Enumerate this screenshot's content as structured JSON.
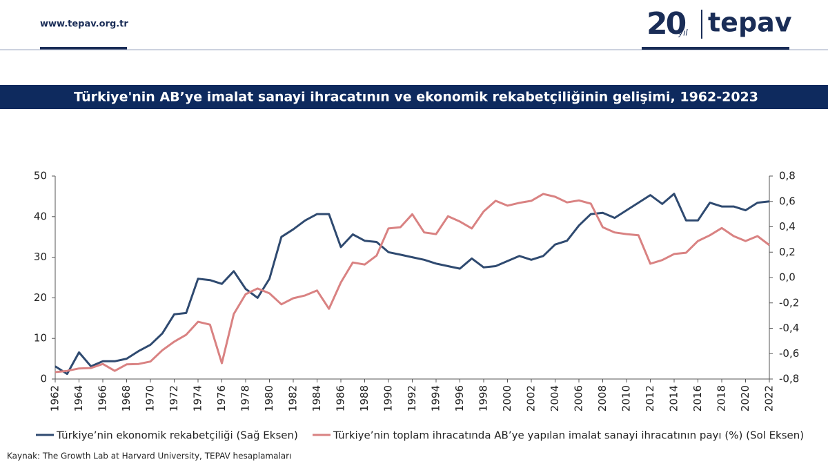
{
  "header": {
    "url": "www.tepav.org.tr",
    "logo_number": "20",
    "logo_suffix": "yıl",
    "logo_name": "tepav"
  },
  "chart_data": {
    "type": "line",
    "title": "Türkiye'nin AB’ye imalat sanayi ihracatının ve ekonomik rekabetçiliğinin gelişimi, 1962-2023",
    "source": "Kaynak: The Growth Lab at Harvard University, TEPAV hesaplamaları",
    "x": [
      1962,
      1963,
      1964,
      1965,
      1966,
      1967,
      1968,
      1969,
      1970,
      1971,
      1972,
      1973,
      1974,
      1975,
      1976,
      1977,
      1978,
      1979,
      1980,
      1981,
      1982,
      1983,
      1984,
      1985,
      1986,
      1987,
      1988,
      1989,
      1990,
      1991,
      1992,
      1993,
      1994,
      1995,
      1996,
      1997,
      1998,
      1999,
      2000,
      2001,
      2002,
      2003,
      2004,
      2005,
      2006,
      2007,
      2008,
      2009,
      2010,
      2011,
      2012,
      2013,
      2014,
      2015,
      2016,
      2017,
      2018,
      2019,
      2020,
      2021,
      2022
    ],
    "xlim": [
      1962,
      2022
    ],
    "xticks": [
      1962,
      1964,
      1966,
      1968,
      1970,
      1972,
      1974,
      1976,
      1978,
      1980,
      1982,
      1984,
      1986,
      1988,
      1990,
      1992,
      1994,
      1996,
      1998,
      2000,
      2002,
      2004,
      2006,
      2008,
      2010,
      2012,
      2014,
      2016,
      2018,
      2020,
      2022
    ],
    "ylim": [
      0,
      50
    ],
    "yticks": [
      0,
      10,
      20,
      30,
      40,
      50
    ],
    "y2lim": [
      -0.8,
      0.8
    ],
    "y2ticks": [
      {
        "value": -0.8,
        "label": "-0,8"
      },
      {
        "value": -0.6,
        "label": "-0,6"
      },
      {
        "value": -0.4,
        "label": "-0,4"
      },
      {
        "value": -0.2,
        "label": "-0,2"
      },
      {
        "value": 0,
        "label": "0,0"
      },
      {
        "value": 0.2,
        "label": "0,2"
      },
      {
        "value": 0.4,
        "label": "0,4"
      },
      {
        "value": 0.6,
        "label": "0,6"
      },
      {
        "value": 0.8,
        "label": "0,8"
      }
    ],
    "series": [
      {
        "name": "Türkiye’nin ekonomik rekabetçiliği (Sağ Eksen)",
        "color": "#2f4a70",
        "axis": "y2",
        "values": [
          -0.7,
          -0.76,
          -0.59,
          -0.7,
          -0.66,
          -0.66,
          -0.64,
          -0.58,
          -0.53,
          -0.44,
          -0.29,
          -0.28,
          -0.01,
          -0.02,
          -0.05,
          0.05,
          -0.09,
          -0.16,
          -0.01,
          0.32,
          0.38,
          0.45,
          0.5,
          0.5,
          0.24,
          0.34,
          0.29,
          0.28,
          0.2,
          0.18,
          0.16,
          0.14,
          0.11,
          0.09,
          0.07,
          0.15,
          0.08,
          0.09,
          0.13,
          0.17,
          0.14,
          0.17,
          0.26,
          0.29,
          0.41,
          0.5,
          0.51,
          0.47,
          0.53,
          0.59,
          0.65,
          0.58,
          0.66,
          0.45,
          0.45,
          0.59,
          0.56,
          0.56,
          0.53,
          0.59,
          0.6
        ]
      },
      {
        "name": "Türkiye’nin toplam ihracatında AB’ye yapılan imalat sanayi ihracatının payı (%) (Sol Eksen)",
        "color": "#d98282",
        "values": [
          1.7,
          2.0,
          2.6,
          2.7,
          3.7,
          2.0,
          3.6,
          3.7,
          4.3,
          7.1,
          9.2,
          10.9,
          14.1,
          13.4,
          3.9,
          16.0,
          20.9,
          22.3,
          21.1,
          18.4,
          19.9,
          20.6,
          21.8,
          17.3,
          23.8,
          28.7,
          28.2,
          30.4,
          37.1,
          37.4,
          40.6,
          36.1,
          35.7,
          40.1,
          38.8,
          37.1,
          41.3,
          43.9,
          42.7,
          43.4,
          43.9,
          45.6,
          44.9,
          43.5,
          44.0,
          43.2,
          37.4,
          36.1,
          35.7,
          35.4,
          28.4,
          29.3,
          30.8,
          31.1,
          34.0,
          35.4,
          37.2,
          35.2,
          34.0,
          35.2,
          33.0
        ]
      }
    ]
  }
}
